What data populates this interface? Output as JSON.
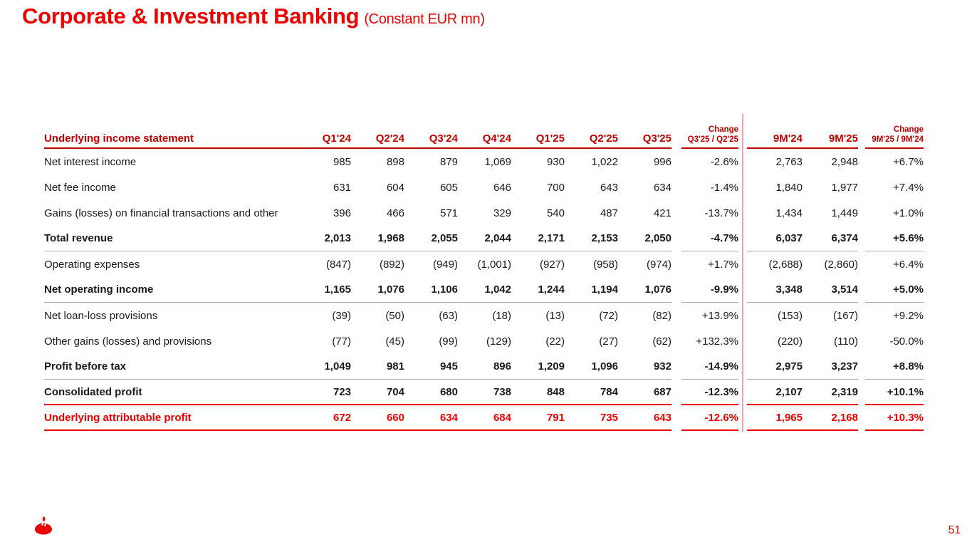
{
  "title": {
    "main": "Corporate & Investment Banking",
    "unit": "(Constant EUR mn)"
  },
  "colors": {
    "brand_red": "#ec0000",
    "header_red": "#bf0000",
    "divider_pink": "#e9a2ae",
    "gray_separator": "#a8a8a8",
    "body_text": "#1a1a1a"
  },
  "table": {
    "row_header": "Underlying income statement",
    "quarter_columns": [
      "Q1'24",
      "Q2'24",
      "Q3'24",
      "Q4'24",
      "Q1'25",
      "Q2'25",
      "Q3'25"
    ],
    "qoq_change_header": {
      "top": "Change",
      "sub": "Q3'25 / Q2'25"
    },
    "ytd_columns": [
      "9M'24",
      "9M'25"
    ],
    "ytd_change_header": {
      "top": "Change",
      "sub": "9M'25 / 9M'24"
    },
    "rows": [
      {
        "label": "Net interest income",
        "values": [
          "985",
          "898",
          "879",
          "1,069",
          "930",
          "1,022",
          "996"
        ],
        "qoq": "-2.6%",
        "ytd": [
          "2,763",
          "2,948"
        ],
        "ytd_change": "+6.7%",
        "bold": false,
        "red": false,
        "sep": "none"
      },
      {
        "label": "Net fee income",
        "values": [
          "631",
          "604",
          "605",
          "646",
          "700",
          "643",
          "634"
        ],
        "qoq": "-1.4%",
        "ytd": [
          "1,840",
          "1,977"
        ],
        "ytd_change": "+7.4%",
        "bold": false,
        "red": false,
        "sep": "none"
      },
      {
        "label": "Gains (losses) on financial transactions and other",
        "values": [
          "396",
          "466",
          "571",
          "329",
          "540",
          "487",
          "421"
        ],
        "qoq": "-13.7%",
        "ytd": [
          "1,434",
          "1,449"
        ],
        "ytd_change": "+1.0%",
        "bold": false,
        "red": false,
        "sep": "none"
      },
      {
        "label": "Total revenue",
        "values": [
          "2,013",
          "1,968",
          "2,055",
          "2,044",
          "2,171",
          "2,153",
          "2,050"
        ],
        "qoq": "-4.7%",
        "ytd": [
          "6,037",
          "6,374"
        ],
        "ytd_change": "+5.6%",
        "bold": true,
        "red": false,
        "sep": "gray"
      },
      {
        "label": "Operating expenses",
        "values": [
          "(847)",
          "(892)",
          "(949)",
          "(1,001)",
          "(927)",
          "(958)",
          "(974)"
        ],
        "qoq": "+1.7%",
        "ytd": [
          "(2,688)",
          "(2,860)"
        ],
        "ytd_change": "+6.4%",
        "bold": false,
        "red": false,
        "sep": "none"
      },
      {
        "label": "Net operating income",
        "values": [
          "1,165",
          "1,076",
          "1,106",
          "1,042",
          "1,244",
          "1,194",
          "1,076"
        ],
        "qoq": "-9.9%",
        "ytd": [
          "3,348",
          "3,514"
        ],
        "ytd_change": "+5.0%",
        "bold": true,
        "red": false,
        "sep": "gray"
      },
      {
        "label": "Net loan-loss provisions",
        "values": [
          "(39)",
          "(50)",
          "(63)",
          "(18)",
          "(13)",
          "(72)",
          "(82)"
        ],
        "qoq": "+13.9%",
        "ytd": [
          "(153)",
          "(167)"
        ],
        "ytd_change": "+9.2%",
        "bold": false,
        "red": false,
        "sep": "none"
      },
      {
        "label": "Other gains (losses) and provisions",
        "values": [
          "(77)",
          "(45)",
          "(99)",
          "(129)",
          "(22)",
          "(27)",
          "(62)"
        ],
        "qoq": "+132.3%",
        "ytd": [
          "(220)",
          "(110)"
        ],
        "ytd_change": "-50.0%",
        "bold": false,
        "red": false,
        "sep": "none"
      },
      {
        "label": "Profit before tax",
        "values": [
          "1,049",
          "981",
          "945",
          "896",
          "1,209",
          "1,096",
          "932"
        ],
        "qoq": "-14.9%",
        "ytd": [
          "2,975",
          "3,237"
        ],
        "ytd_change": "+8.8%",
        "bold": true,
        "red": false,
        "sep": "gray"
      },
      {
        "label": "Consolidated profit",
        "values": [
          "723",
          "704",
          "680",
          "738",
          "848",
          "784",
          "687"
        ],
        "qoq": "-12.3%",
        "ytd": [
          "2,107",
          "2,319"
        ],
        "ytd_change": "+10.1%",
        "bold": true,
        "red": false,
        "sep": "red"
      },
      {
        "label": "Underlying attributable profit",
        "values": [
          "672",
          "660",
          "634",
          "684",
          "791",
          "735",
          "643"
        ],
        "qoq": "-12.6%",
        "ytd": [
          "1,965",
          "2,168"
        ],
        "ytd_change": "+10.3%",
        "bold": true,
        "red": true,
        "sep": "red"
      }
    ]
  },
  "footer": {
    "page_number": "51",
    "logo": "santander-flame-icon"
  }
}
